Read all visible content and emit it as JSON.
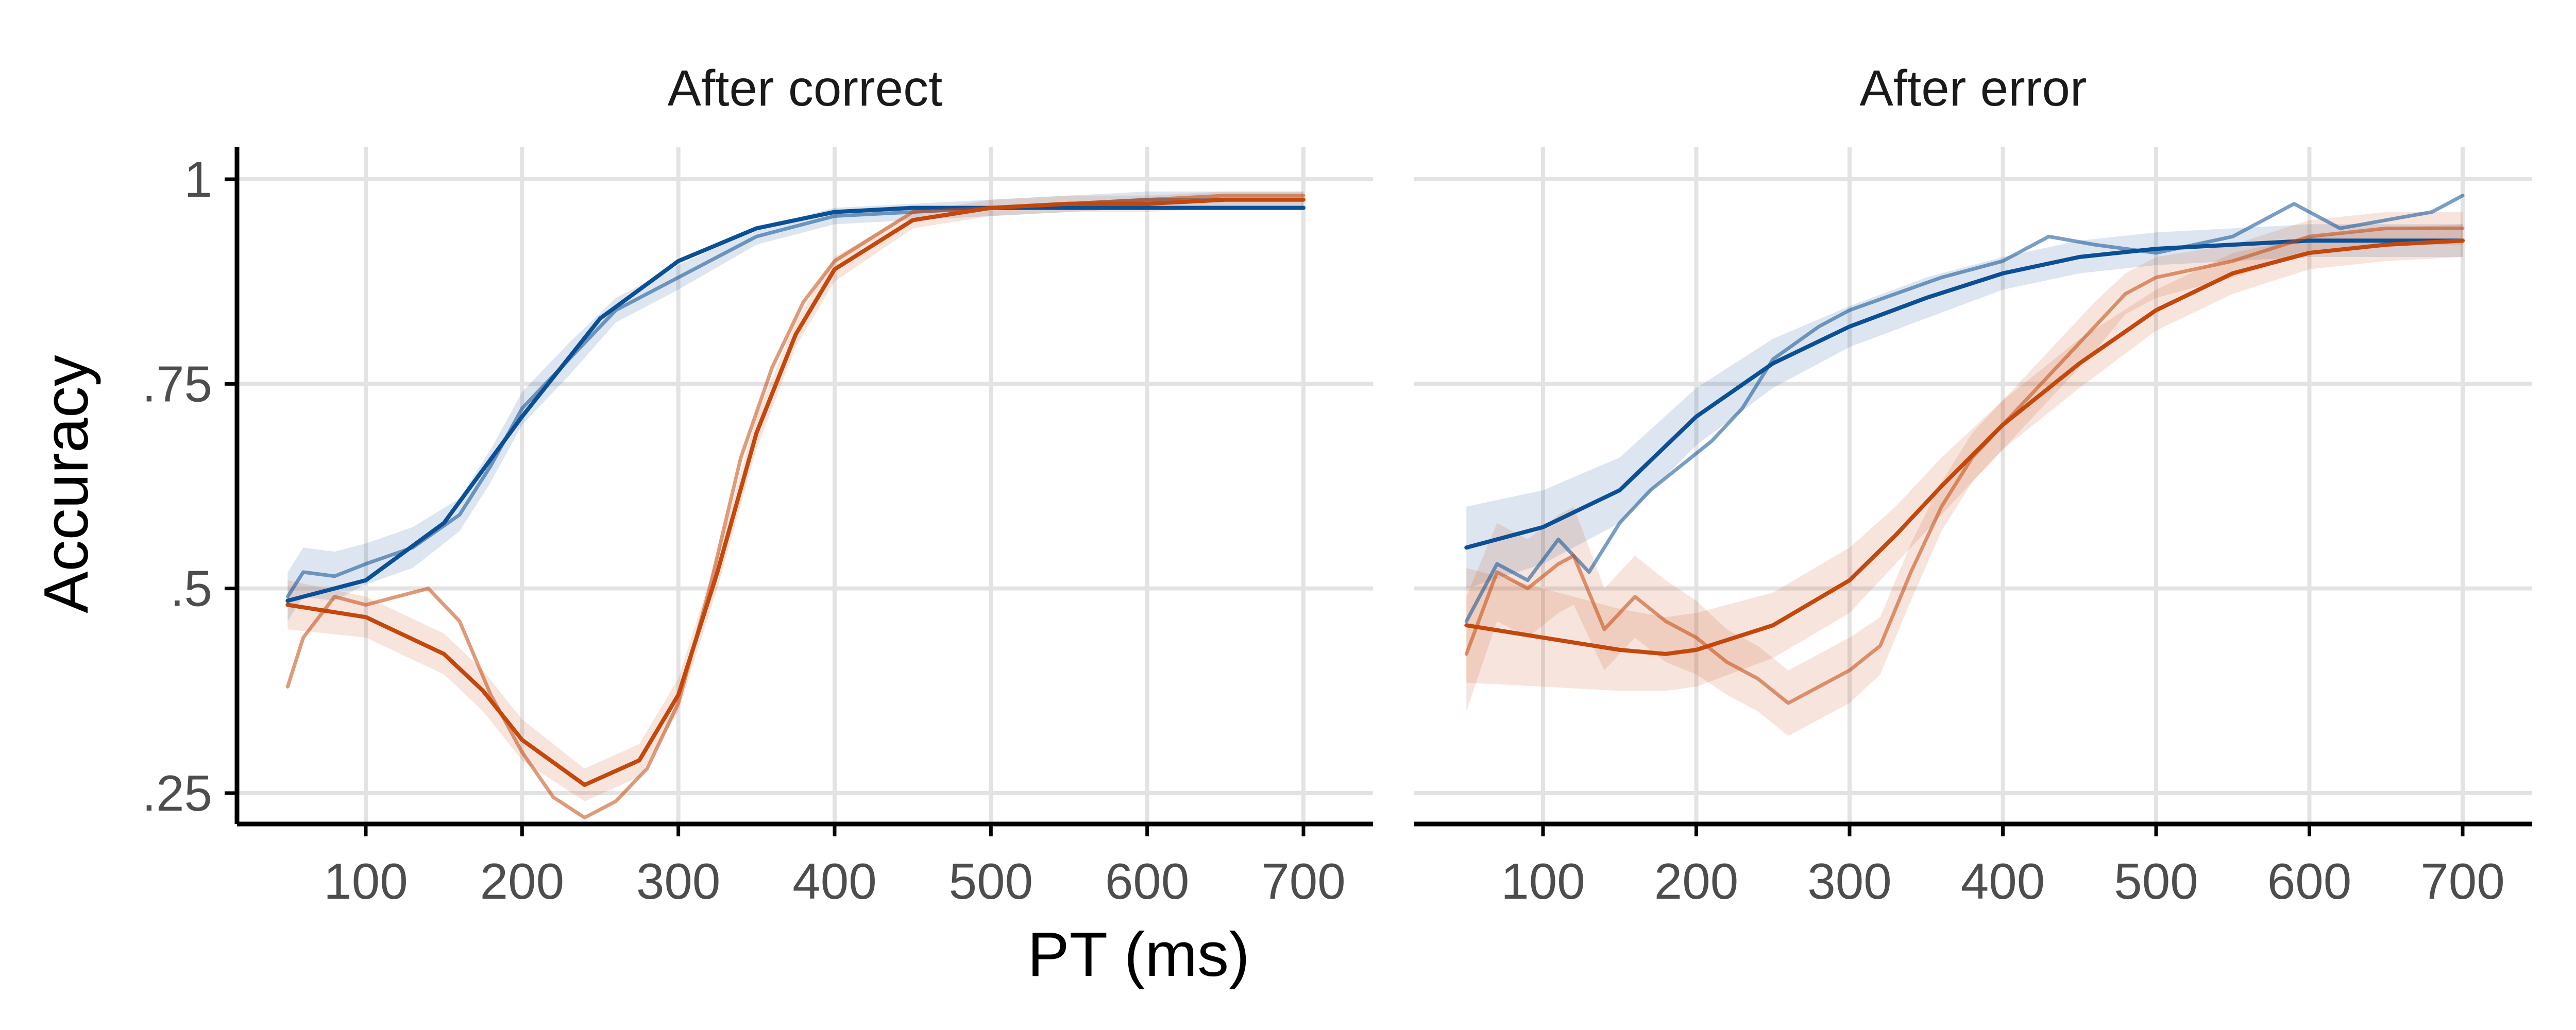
{
  "figure": {
    "xlabel": "PT (ms)",
    "ylabel": "Accuracy"
  },
  "colors": {
    "blue": "#0b4f96",
    "orange": "#c4470b",
    "axis": "#000000",
    "grid": "#e3e3e3",
    "tick_text": "#4d4d4d",
    "title_text": "#1a1a1a"
  },
  "chart_data": [
    {
      "type": "line",
      "title": "After correct",
      "xlabel": "PT (ms)",
      "ylabel": "Accuracy",
      "xlim": [
        50,
        700
      ],
      "ylim": [
        0.225,
        1
      ],
      "x_ticks": [
        100,
        200,
        300,
        400,
        500,
        600,
        700
      ],
      "x_tick_labels": [
        "100",
        "200",
        "300",
        "400",
        "500",
        "600",
        "700"
      ],
      "y_ticks": [
        0.25,
        0.5,
        0.75,
        1
      ],
      "y_tick_labels": [
        ".25",
        ".5",
        ".75",
        "1"
      ],
      "grid": true,
      "series": [
        {
          "color": "blue",
          "style": "fit",
          "x": [
            50,
            100,
            150,
            200,
            250,
            300,
            350,
            400,
            450,
            500,
            550,
            600,
            650,
            700
          ],
          "y": [
            0.485,
            0.51,
            0.58,
            0.71,
            0.83,
            0.9,
            0.94,
            0.96,
            0.965,
            0.965,
            0.965,
            0.965,
            0.965,
            0.965
          ]
        },
        {
          "color": "blue",
          "style": "empirical",
          "x": [
            50,
            60,
            80,
            100,
            130,
            160,
            180,
            200,
            230,
            260,
            300,
            350,
            400,
            450,
            500,
            550,
            600,
            650,
            700
          ],
          "y": [
            0.49,
            0.52,
            0.515,
            0.53,
            0.55,
            0.59,
            0.65,
            0.72,
            0.78,
            0.84,
            0.88,
            0.93,
            0.955,
            0.96,
            0.965,
            0.97,
            0.975,
            0.975,
            0.975
          ],
          "band_halfwidth": [
            0.03,
            0.03,
            0.03,
            0.025,
            0.025,
            0.02,
            0.02,
            0.02,
            0.02,
            0.015,
            0.015,
            0.01,
            0.01,
            0.01,
            0.01,
            0.01,
            0.01,
            0.01,
            0.01
          ]
        },
        {
          "color": "orange",
          "style": "fit",
          "x": [
            50,
            100,
            150,
            175,
            200,
            240,
            275,
            300,
            325,
            350,
            375,
            400,
            450,
            500,
            550,
            600,
            650,
            700
          ],
          "y": [
            0.48,
            0.465,
            0.42,
            0.375,
            0.315,
            0.26,
            0.29,
            0.37,
            0.52,
            0.69,
            0.81,
            0.89,
            0.95,
            0.965,
            0.97,
            0.97,
            0.975,
            0.975
          ],
          "band_halfwidth": [
            0.03,
            0.025,
            0.025,
            0.025,
            0.025,
            0.02,
            0.02,
            0.02,
            0.02,
            0.02,
            0.015,
            0.015,
            0.01,
            0.01,
            0.01,
            0.01,
            0.01,
            0.01
          ]
        },
        {
          "color": "orange",
          "style": "empirical",
          "x": [
            50,
            60,
            80,
            100,
            120,
            140,
            160,
            180,
            200,
            220,
            240,
            260,
            280,
            300,
            320,
            340,
            360,
            380,
            400,
            450,
            500,
            550,
            600,
            650,
            700
          ],
          "y": [
            0.38,
            0.44,
            0.49,
            0.48,
            0.49,
            0.5,
            0.46,
            0.37,
            0.3,
            0.245,
            0.22,
            0.24,
            0.28,
            0.36,
            0.5,
            0.66,
            0.77,
            0.85,
            0.9,
            0.96,
            0.965,
            0.97,
            0.975,
            0.98,
            0.98
          ]
        }
      ]
    },
    {
      "type": "line",
      "title": "After error",
      "xlabel": "PT (ms)",
      "ylabel": "Accuracy",
      "xlim": [
        50,
        700
      ],
      "ylim": [
        0.225,
        1
      ],
      "x_ticks": [
        100,
        200,
        300,
        400,
        500,
        600,
        700
      ],
      "x_tick_labels": [
        "100",
        "200",
        "300",
        "400",
        "500",
        "600",
        "700"
      ],
      "y_ticks": [
        0.25,
        0.5,
        0.75,
        1
      ],
      "y_tick_labels": [
        ".25",
        ".5",
        ".75",
        "1"
      ],
      "grid": true,
      "series": [
        {
          "color": "blue",
          "style": "fit",
          "x": [
            50,
            100,
            150,
            200,
            250,
            300,
            350,
            400,
            450,
            500,
            550,
            600,
            650,
            700
          ],
          "y": [
            0.55,
            0.575,
            0.62,
            0.71,
            0.775,
            0.82,
            0.855,
            0.885,
            0.905,
            0.915,
            0.92,
            0.925,
            0.925,
            0.925
          ],
          "band_halfwidth": [
            0.05,
            0.045,
            0.04,
            0.035,
            0.03,
            0.025,
            0.025,
            0.02,
            0.02,
            0.02,
            0.02,
            0.02,
            0.02,
            0.02
          ]
        },
        {
          "color": "blue",
          "style": "empirical",
          "x": [
            50,
            70,
            90,
            110,
            130,
            150,
            170,
            190,
            210,
            230,
            250,
            280,
            300,
            330,
            360,
            400,
            430,
            460,
            500,
            550,
            590,
            620,
            650,
            680,
            700
          ],
          "y": [
            0.46,
            0.53,
            0.51,
            0.56,
            0.52,
            0.58,
            0.62,
            0.65,
            0.68,
            0.72,
            0.78,
            0.82,
            0.84,
            0.86,
            0.88,
            0.9,
            0.93,
            0.92,
            0.91,
            0.93,
            0.97,
            0.94,
            0.95,
            0.96,
            0.98
          ]
        },
        {
          "color": "orange",
          "style": "fit",
          "x": [
            50,
            100,
            150,
            180,
            200,
            250,
            300,
            330,
            360,
            400,
            450,
            500,
            550,
            600,
            650,
            700
          ],
          "y": [
            0.455,
            0.44,
            0.425,
            0.42,
            0.425,
            0.455,
            0.51,
            0.565,
            0.625,
            0.7,
            0.775,
            0.84,
            0.885,
            0.91,
            0.92,
            0.925
          ],
          "band_halfwidth": [
            0.07,
            0.06,
            0.05,
            0.045,
            0.045,
            0.04,
            0.04,
            0.035,
            0.035,
            0.03,
            0.03,
            0.025,
            0.025,
            0.02,
            0.02,
            0.02
          ]
        },
        {
          "color": "orange",
          "style": "empirical",
          "x": [
            50,
            70,
            90,
            110,
            120,
            140,
            160,
            180,
            200,
            220,
            240,
            260,
            280,
            300,
            320,
            340,
            360,
            380,
            400,
            430,
            460,
            480,
            500,
            550,
            600,
            650,
            700
          ],
          "y": [
            0.42,
            0.52,
            0.5,
            0.53,
            0.54,
            0.45,
            0.49,
            0.46,
            0.44,
            0.41,
            0.39,
            0.36,
            0.38,
            0.4,
            0.43,
            0.52,
            0.6,
            0.66,
            0.7,
            0.76,
            0.82,
            0.86,
            0.88,
            0.9,
            0.93,
            0.94,
            0.94
          ],
          "band_halfwidth": [
            0.07,
            0.06,
            0.06,
            0.06,
            0.06,
            0.05,
            0.05,
            0.05,
            0.045,
            0.04,
            0.04,
            0.04,
            0.04,
            0.04,
            0.035,
            0.035,
            0.03,
            0.03,
            0.03,
            0.03,
            0.03,
            0.025,
            0.025,
            0.02,
            0.02,
            0.02,
            0.02
          ]
        }
      ]
    }
  ]
}
